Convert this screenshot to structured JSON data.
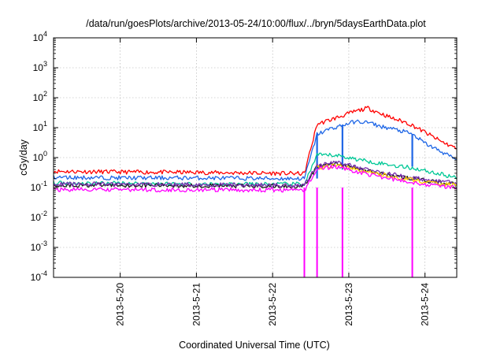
{
  "chart_data": {
    "type": "line",
    "title": "/data/run/goesPlots/archive/2013-05-24/10:00/flux/../bryn/5daysEarthData.plot",
    "xlabel": "Coordinated Universal Time (UTC)",
    "ylabel": "cGy/day",
    "yscale": "log",
    "ylim": [
      0.0001,
      10000
    ],
    "xlim": [
      "2013-05-19T03:00",
      "2013-05-24T10:00"
    ],
    "x_ticks": [
      {
        "label": "2013-5-20",
        "t": "2013-05-20T00:00"
      },
      {
        "label": "2013-5-21",
        "t": "2013-05-21T00:00"
      },
      {
        "label": "2013-5-22",
        "t": "2013-05-22T00:00"
      },
      {
        "label": "2013-5-23",
        "t": "2013-05-23T00:00"
      },
      {
        "label": "2013-5-24",
        "t": "2013-05-24T00:00"
      }
    ],
    "y_ticks": [
      {
        "base": "10",
        "exp": "-4",
        "value": 0.0001
      },
      {
        "base": "10",
        "exp": "-3",
        "value": 0.001
      },
      {
        "base": "10",
        "exp": "-2",
        "value": 0.01
      },
      {
        "base": "10",
        "exp": "-1",
        "value": 0.1
      },
      {
        "base": "10",
        "exp": "0",
        "value": 1
      },
      {
        "base": "10",
        "exp": "1",
        "value": 10
      },
      {
        "base": "10",
        "exp": "2",
        "value": 100
      },
      {
        "base": "10",
        "exp": "3",
        "value": 1000
      },
      {
        "base": "10",
        "exp": "4",
        "value": 10000
      }
    ],
    "grid": true,
    "series": [
      {
        "color": "#ff0000",
        "points": [
          [
            "2013-05-19T03:00",
            0.35
          ],
          [
            "2013-05-20T00:00",
            0.33
          ],
          [
            "2013-05-21T00:00",
            0.32
          ],
          [
            "2013-05-22T00:00",
            0.3
          ],
          [
            "2013-05-22T10:00",
            0.29
          ],
          [
            "2013-05-22T14:00",
            13
          ],
          [
            "2013-05-22T18:00",
            18
          ],
          [
            "2013-05-22T22:00",
            25
          ],
          [
            "2013-05-23T02:00",
            35
          ],
          [
            "2013-05-23T06:00",
            45
          ],
          [
            "2013-05-23T10:00",
            30
          ],
          [
            "2013-05-23T14:00",
            20
          ],
          [
            "2013-05-23T18:00",
            15
          ],
          [
            "2013-05-23T20:00",
            12
          ],
          [
            "2013-05-24T00:00",
            7
          ],
          [
            "2013-05-24T05:00",
            3.5
          ],
          [
            "2013-05-24T10:00",
            2
          ]
        ]
      },
      {
        "color": "#1e66e6",
        "points": [
          [
            "2013-05-19T03:00",
            0.22
          ],
          [
            "2013-05-20T00:00",
            0.21
          ],
          [
            "2013-05-21T00:00",
            0.21
          ],
          [
            "2013-05-22T00:00",
            0.2
          ],
          [
            "2013-05-22T10:00",
            0.2
          ],
          [
            "2013-05-22T14:00",
            6
          ],
          [
            "2013-05-22T18:00",
            9
          ],
          [
            "2013-05-22T22:00",
            12
          ],
          [
            "2013-05-23T02:00",
            16
          ],
          [
            "2013-05-23T06:00",
            15
          ],
          [
            "2013-05-23T10:00",
            11
          ],
          [
            "2013-05-23T14:00",
            9
          ],
          [
            "2013-05-23T18:00",
            7
          ],
          [
            "2013-05-23T20:00",
            6
          ],
          [
            "2013-05-24T00:00",
            3
          ],
          [
            "2013-05-24T05:00",
            1.6
          ],
          [
            "2013-05-24T10:00",
            0.85
          ]
        ]
      },
      {
        "color": "#00c896",
        "points": [
          [
            "2013-05-19T03:00",
            0.14
          ],
          [
            "2013-05-20T00:00",
            0.14
          ],
          [
            "2013-05-21T00:00",
            0.13
          ],
          [
            "2013-05-22T00:00",
            0.13
          ],
          [
            "2013-05-22T10:00",
            0.13
          ],
          [
            "2013-05-22T14:00",
            1.2
          ],
          [
            "2013-05-22T20:00",
            1.2
          ],
          [
            "2013-05-23T02:00",
            0.9
          ],
          [
            "2013-05-23T08:00",
            0.7
          ],
          [
            "2013-05-23T14:00",
            0.55
          ],
          [
            "2013-05-23T20:00",
            0.45
          ],
          [
            "2013-05-24T02:00",
            0.33
          ],
          [
            "2013-05-24T10:00",
            0.21
          ]
        ]
      },
      {
        "color": "#1a1a1a",
        "points": [
          [
            "2013-05-19T03:00",
            0.12
          ],
          [
            "2013-05-20T00:00",
            0.12
          ],
          [
            "2013-05-21T00:00",
            0.115
          ],
          [
            "2013-05-22T00:00",
            0.11
          ],
          [
            "2013-05-22T10:00",
            0.11
          ],
          [
            "2013-05-22T14:00",
            0.5
          ],
          [
            "2013-05-22T20:00",
            0.65
          ],
          [
            "2013-05-23T02:00",
            0.45
          ],
          [
            "2013-05-23T08:00",
            0.32
          ],
          [
            "2013-05-23T14:00",
            0.25
          ],
          [
            "2013-05-23T20:00",
            0.2
          ],
          [
            "2013-05-24T02:00",
            0.16
          ],
          [
            "2013-05-24T10:00",
            0.13
          ]
        ]
      },
      {
        "color": "#7b2fb0",
        "points": [
          [
            "2013-05-19T03:00",
            0.13
          ],
          [
            "2013-05-20T00:00",
            0.13
          ],
          [
            "2013-05-21T00:00",
            0.125
          ],
          [
            "2013-05-22T00:00",
            0.12
          ],
          [
            "2013-05-22T10:00",
            0.12
          ],
          [
            "2013-05-22T14:00",
            0.55
          ],
          [
            "2013-05-22T20:00",
            0.7
          ],
          [
            "2013-05-23T02:00",
            0.5
          ],
          [
            "2013-05-23T08:00",
            0.35
          ],
          [
            "2013-05-23T14:00",
            0.27
          ],
          [
            "2013-05-23T20:00",
            0.21
          ],
          [
            "2013-05-24T02:00",
            0.17
          ],
          [
            "2013-05-24T10:00",
            0.14
          ]
        ]
      },
      {
        "color": "#ffcc00",
        "points": [
          [
            "2013-05-22T14:00",
            0.45
          ],
          [
            "2013-05-22T20:00",
            0.55
          ],
          [
            "2013-05-23T02:00",
            0.4
          ],
          [
            "2013-05-23T08:00",
            0.3
          ],
          [
            "2013-05-23T14:00",
            0.23
          ],
          [
            "2013-05-23T20:00",
            0.18
          ],
          [
            "2013-05-24T02:00",
            0.14
          ],
          [
            "2013-05-24T10:00",
            0.12
          ]
        ]
      },
      {
        "color": "#ff00ff",
        "points": [
          [
            "2013-05-19T03:00",
            0.085
          ],
          [
            "2013-05-20T00:00",
            0.085
          ],
          [
            "2013-05-21T00:00",
            0.083
          ],
          [
            "2013-05-22T00:00",
            0.082
          ],
          [
            "2013-05-22T10:00",
            0.08
          ],
          [
            "2013-05-22T14:00",
            0.42
          ],
          [
            "2013-05-22T20:00",
            0.5
          ],
          [
            "2013-05-23T02:00",
            0.35
          ],
          [
            "2013-05-23T08:00",
            0.25
          ],
          [
            "2013-05-23T14:00",
            0.19
          ],
          [
            "2013-05-23T20:00",
            0.15
          ],
          [
            "2013-05-24T02:00",
            0.12
          ],
          [
            "2013-05-24T10:00",
            0.1
          ]
        ]
      }
    ]
  }
}
